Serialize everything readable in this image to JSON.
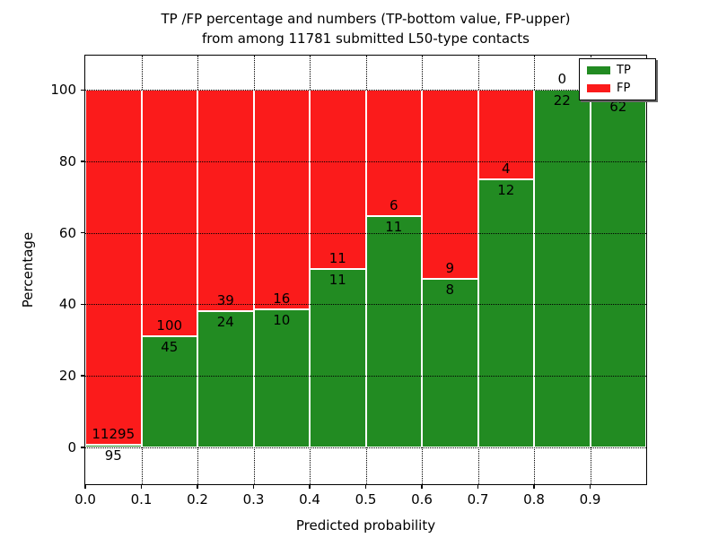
{
  "title": {
    "line1": "TP /FP percentage and numbers (TP-bottom value, FP-upper)",
    "line2": "from among 11781 submitted L50-type contacts"
  },
  "axes": {
    "xlabel": "Predicted probability",
    "ylabel": "Percentage",
    "x_tick_labels": [
      "0.0",
      "0.1",
      "0.2",
      "0.3",
      "0.4",
      "0.5",
      "0.6",
      "0.7",
      "0.8",
      "0.9"
    ],
    "y_tick_labels": [
      "0",
      "20",
      "40",
      "60",
      "80",
      "100"
    ]
  },
  "legend": {
    "items": [
      {
        "label": "TP",
        "color": "#228b22"
      },
      {
        "label": "FP",
        "color": "#fb1b1b"
      }
    ]
  },
  "colors": {
    "tp": "#228b22",
    "fp": "#fb1b1b",
    "grid": "#000000",
    "background": "#ffffff"
  },
  "chart_data": {
    "type": "bar",
    "stacked": true,
    "title": "TP /FP percentage and numbers (TP-bottom value, FP-upper) from among 11781 submitted L50-type contacts",
    "total_contacts": 11781,
    "xlabel": "Predicted probability",
    "ylabel": "Percentage",
    "xlim": [
      0.0,
      1.0
    ],
    "ylim": [
      -10.3,
      109.6
    ],
    "x_tick_values": [
      0.0,
      0.1,
      0.2,
      0.3,
      0.4,
      0.5,
      0.6,
      0.7,
      0.8,
      0.9
    ],
    "y_tick_values": [
      0,
      20,
      40,
      60,
      80,
      100
    ],
    "grid": true,
    "legend_position": "upper right",
    "categories": [
      "0.0-0.1",
      "0.1-0.2",
      "0.2-0.3",
      "0.3-0.4",
      "0.4-0.5",
      "0.5-0.6",
      "0.6-0.7",
      "0.7-0.8",
      "0.8-0.9",
      "0.9-1.0"
    ],
    "series": [
      {
        "name": "TP",
        "color": "#228b22",
        "unit": "percent",
        "values": [
          0.8,
          31.0,
          38.1,
          38.5,
          50.0,
          64.7,
          47.1,
          75.0,
          100.0,
          98.4
        ],
        "counts": [
          95,
          45,
          24,
          10,
          11,
          11,
          8,
          12,
          22,
          62
        ]
      },
      {
        "name": "FP",
        "color": "#fb1b1b",
        "unit": "percent",
        "values": [
          99.2,
          69.0,
          61.9,
          61.5,
          50.0,
          35.3,
          52.9,
          25.0,
          0.0,
          1.6
        ],
        "counts": [
          11295,
          100,
          39,
          16,
          11,
          6,
          9,
          4,
          0,
          null
        ]
      }
    ],
    "bar_labels": [
      {
        "fp": "11295",
        "tp": "95"
      },
      {
        "fp": "100",
        "tp": "45"
      },
      {
        "fp": "39",
        "tp": "24"
      },
      {
        "fp": "16",
        "tp": "10"
      },
      {
        "fp": "11",
        "tp": "11"
      },
      {
        "fp": "6",
        "tp": "11"
      },
      {
        "fp": "9",
        "tp": "8"
      },
      {
        "fp": "4",
        "tp": "12"
      },
      {
        "fp": "0",
        "tp": "22"
      },
      {
        "fp": "",
        "tp": "62"
      }
    ]
  }
}
